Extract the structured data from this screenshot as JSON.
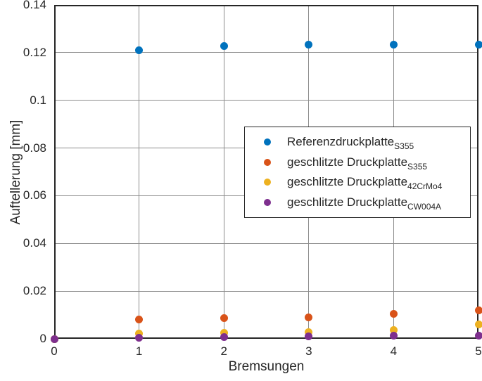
{
  "chart_data": {
    "type": "scatter",
    "title": "",
    "xlabel": "Bremsungen",
    "ylabel": "Auftellerung [mm]",
    "xlim": [
      0,
      5
    ],
    "ylim": [
      0,
      0.14
    ],
    "x_ticks": [
      "0",
      "1",
      "2",
      "3",
      "4",
      "5"
    ],
    "y_ticks": [
      "0",
      "0.02",
      "0.04",
      "0.06",
      "0.08",
      "0.1",
      "0.12",
      "0.14"
    ],
    "grid": true,
    "legend_position": "middle-right",
    "x": [
      0,
      1,
      2,
      3,
      4,
      5
    ],
    "series": [
      {
        "name": "Referenzdruckplatte",
        "subscript": "S355",
        "color": "#0072BD",
        "values": [
          0,
          0.121,
          0.1228,
          0.1233,
          0.1233,
          0.1234
        ]
      },
      {
        "name": "geschlitzte Druckplatte",
        "subscript": "S355",
        "color": "#D95319",
        "values": [
          0,
          0.0082,
          0.0086,
          0.0089,
          0.0104,
          0.0119
        ]
      },
      {
        "name": "geschlitzte Druckplatte",
        "subscript": "42CrMo4",
        "color": "#EDB120",
        "values": [
          0,
          0.0022,
          0.0026,
          0.0027,
          0.0038,
          0.006
        ]
      },
      {
        "name": "geschlitzte Druckplatte",
        "subscript": "CW004A",
        "color": "#7E2F8E",
        "values": [
          0,
          0.0005,
          0.0007,
          0.0009,
          0.0012,
          0.0013
        ]
      }
    ]
  },
  "colors": {
    "axis": "#262626",
    "grid": "#8c8c8c",
    "text": "#262626",
    "background": "#ffffff"
  }
}
